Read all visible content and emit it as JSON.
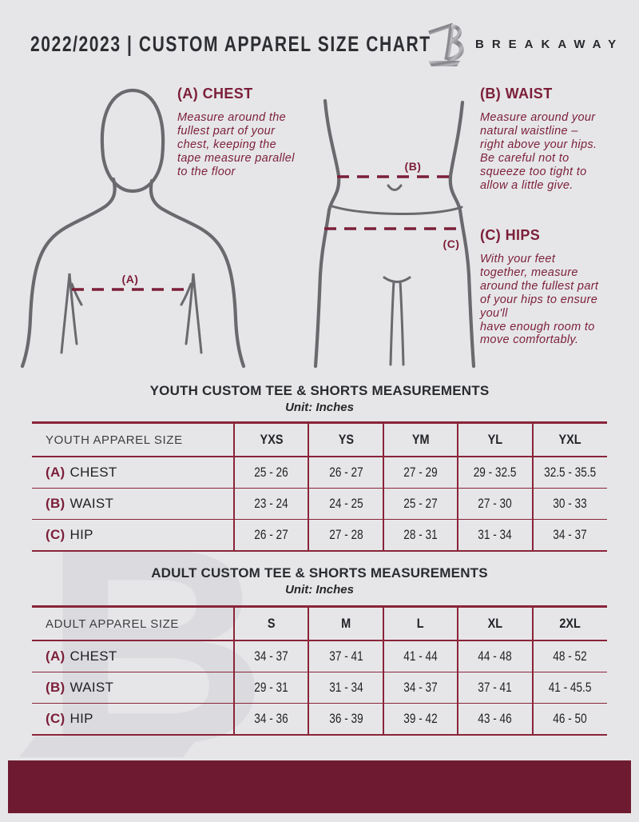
{
  "header": {
    "title": "2022/2023 | CUSTOM APPAREL SIZE CHART",
    "brand": "BREAKAWAY"
  },
  "watermark": {
    "letter": "B"
  },
  "diagram_labels": {
    "chest": "(A)",
    "waist": "(B)",
    "hips": "(C)"
  },
  "instructions": {
    "chest": {
      "heading": "(A) CHEST",
      "body": "Measure around the\nfullest part of your\nchest, keeping the\ntape measure parallel\nto the floor"
    },
    "waist": {
      "heading": "(B) WAIST",
      "body": "Measure around your\nnatural waistline –\nright above your hips.\nBe careful not to\nsqueeze too tight to\nallow a little give."
    },
    "hips": {
      "heading": "(C) HIPS",
      "body": "With your feet\ntogether, measure\naround the fullest part\nof your hips to ensure\nyou'll\nhave enough room to\nmove comfortably."
    }
  },
  "youth_table": {
    "title": "YOUTH CUSTOM TEE & SHORTS MEASUREMENTS",
    "unit": "Unit: Inches",
    "size_header": "YOUTH APPAREL SIZE",
    "columns": [
      "YXS",
      "YS",
      "YM",
      "YL",
      "YXL"
    ],
    "rows": [
      {
        "prefix": "(A)",
        "label": "CHEST",
        "values": [
          "25 - 26",
          "26 - 27",
          "27 - 29",
          "29 - 32.5",
          "32.5 - 35.5"
        ]
      },
      {
        "prefix": "(B)",
        "label": "WAIST",
        "values": [
          "23 - 24",
          "24 - 25",
          "25 - 27",
          "27 - 30",
          "30 - 33"
        ]
      },
      {
        "prefix": "(C)",
        "label": "HIP",
        "values": [
          "26 - 27",
          "27 - 28",
          "28 - 31",
          "31 - 34",
          "34 - 37"
        ]
      }
    ]
  },
  "adult_table": {
    "title": "ADULT CUSTOM TEE & SHORTS MEASUREMENTS",
    "unit": "Unit: Inches",
    "size_header": "ADULT APPAREL SIZE",
    "columns": [
      "S",
      "M",
      "L",
      "XL",
      "2XL"
    ],
    "rows": [
      {
        "prefix": "(A)",
        "label": "CHEST",
        "values": [
          "34 - 37",
          "37 - 41",
          "41 - 44",
          "44 - 48",
          "48 - 52"
        ]
      },
      {
        "prefix": "(B)",
        "label": "WAIST",
        "values": [
          "29 - 31",
          "31 - 34",
          "34 - 37",
          "37 - 41",
          "41 - 45.5"
        ]
      },
      {
        "prefix": "(C)",
        "label": "HIP",
        "values": [
          "34 - 36",
          "36 - 39",
          "39 - 42",
          "43 - 46",
          "46 - 50"
        ]
      }
    ]
  },
  "colors": {
    "maroon_text": "#7c1f39",
    "table_border": "#8a2439",
    "footer_bar": "#6e1b31",
    "page_bg": "#e6e6e8",
    "figure_gray": "#6a6a6e"
  }
}
